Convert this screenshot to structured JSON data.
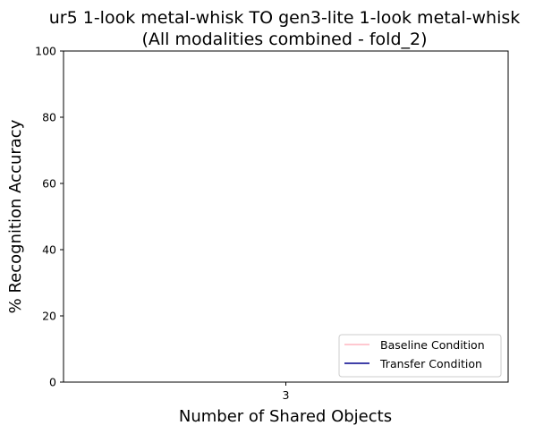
{
  "chart_data": {
    "type": "line",
    "title_line1": "ur5 1-look metal-whisk TO gen3-lite 1-look metal-whisk",
    "title_line2": "(All modalities combined - fold_2)",
    "xlabel": "Number of Shared Objects",
    "ylabel": "% Recognition Accuracy",
    "x_ticks": [
      "3"
    ],
    "y_ticks": [
      0,
      20,
      40,
      60,
      80,
      100
    ],
    "ylim": [
      0,
      100
    ],
    "grid": false,
    "legend_position": "lower-right",
    "series": [
      {
        "name": "Baseline Condition",
        "color": "#ffb6c1",
        "x": [],
        "y": []
      },
      {
        "name": "Transfer Condition",
        "color": "#00008b",
        "x": [],
        "y": []
      }
    ]
  }
}
